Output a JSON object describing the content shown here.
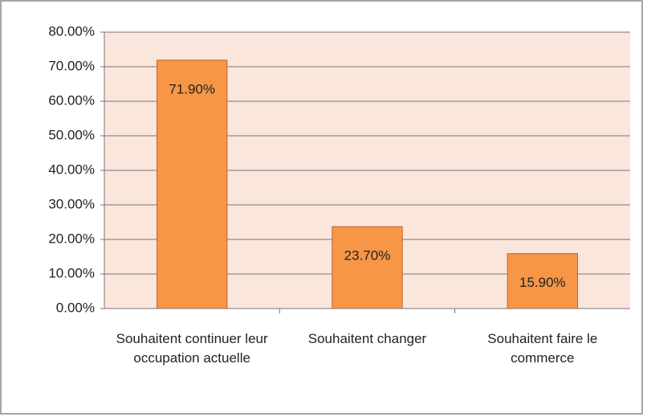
{
  "chart_data": {
    "type": "bar",
    "categories": [
      "Souhaitent continuer leur occupation actuelle",
      "Souhaitent changer",
      "Souhaitent faire le commerce"
    ],
    "values": [
      71.9,
      23.7,
      15.9
    ],
    "value_labels": [
      "71.90%",
      "23.70%",
      "15.90%"
    ],
    "color": "#f79646",
    "ylim": [
      0,
      80
    ],
    "yticks": [
      {
        "value": 0,
        "label": "0.00%"
      },
      {
        "value": 10,
        "label": "10.00%"
      },
      {
        "value": 20,
        "label": "20.00%"
      },
      {
        "value": 30,
        "label": "30.00%"
      },
      {
        "value": 40,
        "label": "40.00%"
      },
      {
        "value": 50,
        "label": "50.00%"
      },
      {
        "value": 60,
        "label": "60.00%"
      },
      {
        "value": 70,
        "label": "70.00%"
      },
      {
        "value": 80,
        "label": "80.00%"
      }
    ],
    "grid": true
  }
}
